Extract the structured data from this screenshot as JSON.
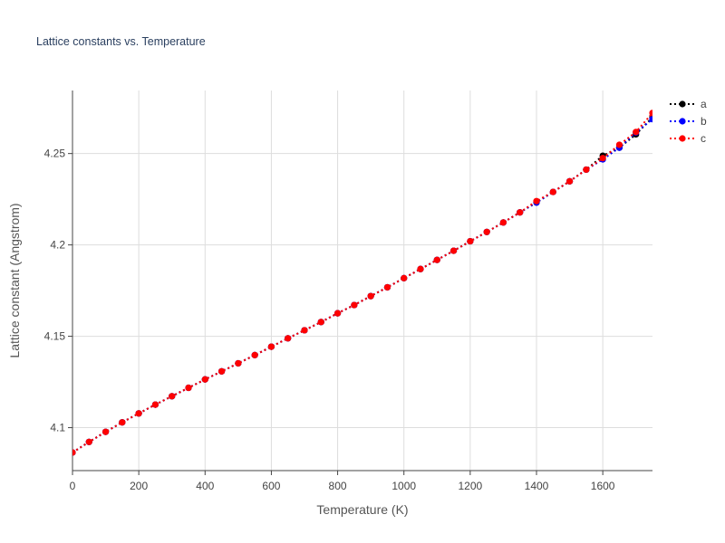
{
  "chart_data": {
    "type": "line",
    "title": "Lattice constants vs. Temperature",
    "xlabel": "Temperature (K)",
    "ylabel": "Lattice constant (Angstrom)",
    "xlim": [
      0,
      1750
    ],
    "ylim": [
      4.0765,
      4.2845
    ],
    "x_ticks": [
      0,
      200,
      400,
      600,
      800,
      1000,
      1200,
      1400,
      1600
    ],
    "x_tick_labels": [
      "0",
      "200",
      "400",
      "600",
      "800",
      "1000",
      "1200",
      "1400",
      "1600"
    ],
    "y_ticks": [
      4.1,
      4.15,
      4.2,
      4.25
    ],
    "y_tick_labels": [
      "4.1",
      "4.15",
      "4.2",
      "4.25"
    ],
    "grid": true,
    "legend_position": "top-right",
    "line_style": "dotted-with-markers",
    "series": [
      {
        "name": "a",
        "color": "#000000",
        "x": [
          0,
          50,
          100,
          150,
          200,
          250,
          300,
          350,
          400,
          450,
          500,
          550,
          600,
          650,
          700,
          750,
          800,
          850,
          900,
          950,
          1000,
          1050,
          1100,
          1150,
          1200,
          1250,
          1300,
          1350,
          1400,
          1450,
          1500,
          1550,
          1600,
          1650,
          1700,
          1750
        ],
        "y": [
          4.0864,
          4.0922,
          4.0977,
          4.1029,
          4.1078,
          4.1126,
          4.1172,
          4.1218,
          4.1264,
          4.1308,
          4.1352,
          4.1397,
          4.1443,
          4.1489,
          4.1533,
          4.1578,
          4.1626,
          4.1671,
          4.172,
          4.1768,
          4.1818,
          4.1868,
          4.1918,
          4.1968,
          4.202,
          4.2071,
          4.2123,
          4.2178,
          4.2232,
          4.229,
          4.2348,
          4.2412,
          4.2488,
          4.2532,
          4.2605,
          4.2698
        ]
      },
      {
        "name": "b",
        "color": "#0000ff",
        "x": [
          0,
          50,
          100,
          150,
          200,
          250,
          300,
          350,
          400,
          450,
          500,
          550,
          600,
          650,
          700,
          750,
          800,
          850,
          900,
          950,
          1000,
          1050,
          1100,
          1150,
          1200,
          1250,
          1300,
          1350,
          1400,
          1450,
          1500,
          1550,
          1600,
          1650,
          1700,
          1750
        ],
        "y": [
          4.0864,
          4.0922,
          4.0977,
          4.1029,
          4.1078,
          4.1126,
          4.1172,
          4.1218,
          4.1264,
          4.1308,
          4.1352,
          4.1397,
          4.1443,
          4.1489,
          4.1533,
          4.1578,
          4.1626,
          4.1671,
          4.172,
          4.1768,
          4.1818,
          4.1868,
          4.1918,
          4.1968,
          4.202,
          4.2071,
          4.2123,
          4.2178,
          4.2232,
          4.229,
          4.2348,
          4.2412,
          4.2468,
          4.2532,
          4.2615,
          4.2688
        ]
      },
      {
        "name": "c",
        "color": "#ff0000",
        "x": [
          0,
          50,
          100,
          150,
          200,
          250,
          300,
          350,
          400,
          450,
          500,
          550,
          600,
          650,
          700,
          750,
          800,
          850,
          900,
          950,
          1000,
          1050,
          1100,
          1150,
          1200,
          1250,
          1300,
          1350,
          1400,
          1450,
          1500,
          1550,
          1600,
          1650,
          1700,
          1750
        ],
        "y": [
          4.0864,
          4.0922,
          4.0977,
          4.1029,
          4.1078,
          4.1126,
          4.1172,
          4.1218,
          4.1264,
          4.1308,
          4.1352,
          4.1397,
          4.1443,
          4.1489,
          4.1533,
          4.1578,
          4.1626,
          4.1671,
          4.172,
          4.1768,
          4.1818,
          4.1868,
          4.1918,
          4.1968,
          4.202,
          4.2071,
          4.2123,
          4.2178,
          4.224,
          4.229,
          4.2348,
          4.2412,
          4.2475,
          4.2548,
          4.2618,
          4.2722
        ]
      }
    ]
  }
}
